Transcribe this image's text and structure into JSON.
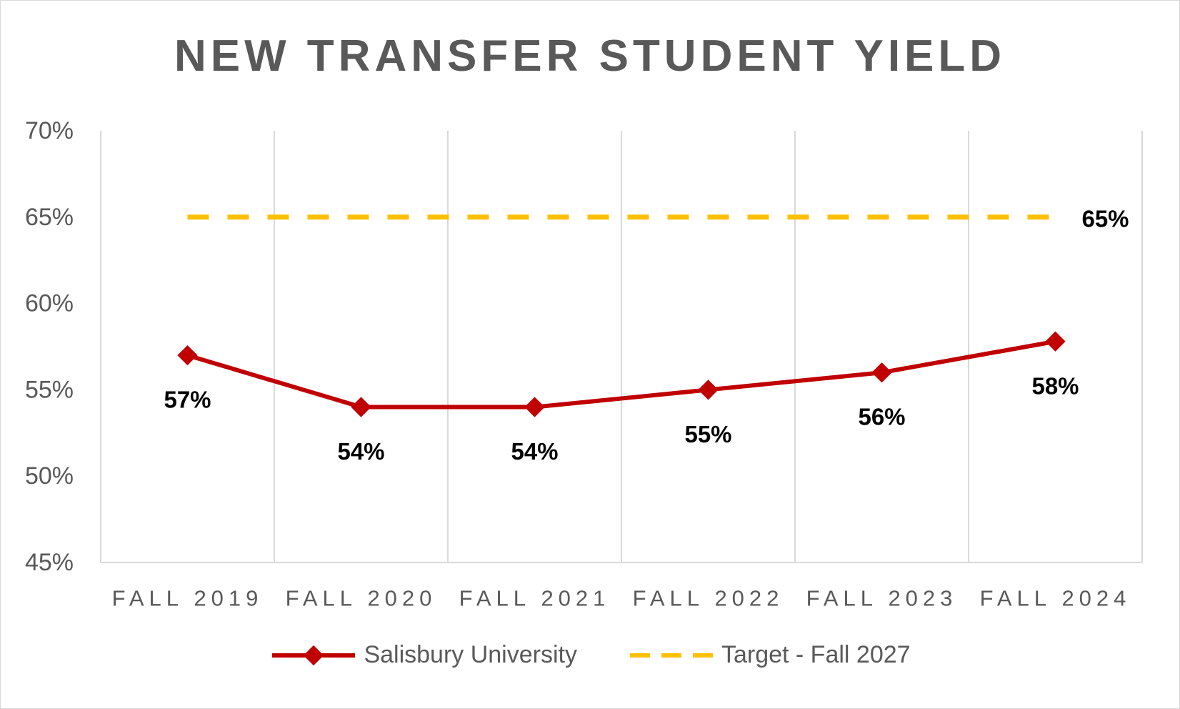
{
  "chart_data": {
    "type": "line",
    "title": "NEW TRANSFER STUDENT YIELD",
    "categories": [
      "FALL 2019",
      "FALL 2020",
      "FALL 2021",
      "FALL 2022",
      "FALL 2023",
      "FALL 2024"
    ],
    "ylim": [
      45,
      70
    ],
    "yticks": [
      45,
      50,
      55,
      60,
      65,
      70
    ],
    "ytick_labels": [
      "45%",
      "50%",
      "55%",
      "60%",
      "65%",
      "70%"
    ],
    "grid": "vertical",
    "legend_position": "bottom",
    "series": [
      {
        "name": "Salisbury University",
        "values": [
          57,
          54,
          54,
          55,
          56,
          57.8
        ],
        "labels": [
          "57%",
          "54%",
          "54%",
          "55%",
          "56%",
          "58%"
        ],
        "color": "#C00000",
        "style": "solid",
        "marker": "diamond"
      },
      {
        "name": "Target - Fall 2027",
        "values": [
          65,
          65,
          65,
          65,
          65,
          65
        ],
        "end_label": "65%",
        "color": "#FFC000",
        "style": "dashed",
        "marker": "none"
      }
    ]
  }
}
